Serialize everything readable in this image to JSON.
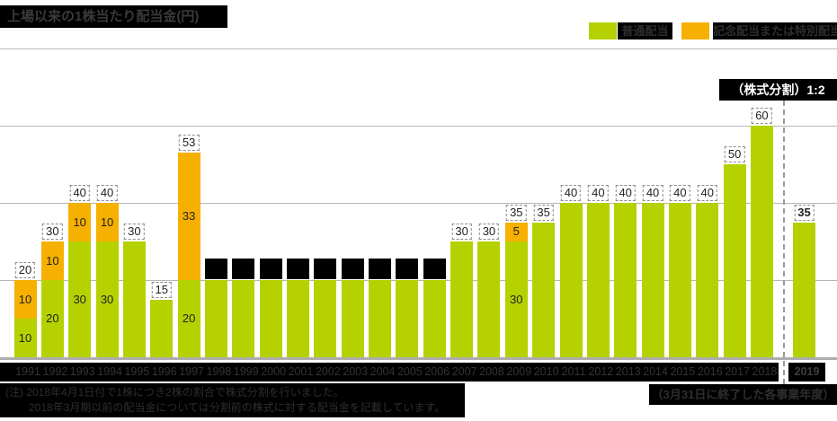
{
  "title": "上場以来の1株当たり配当金(円)",
  "colors": {
    "ordinary": "#b5d200",
    "special": "#f6b000",
    "grid": "#b7b7b7",
    "label_box_border": "#8c8c8c"
  },
  "legend": {
    "ordinary_label": "普通配当",
    "special_label": "記念配当または特別配当"
  },
  "split_annotation": "（株式分割）1:2",
  "axis_note": "（3月31日に終了した各事業年度）",
  "footnote": {
    "line1": "(注) 2018年4月1日付で1株につき2株の割合で株式分割を行いました。",
    "line2": "2018年3月期以前の配当金については分割前の株式に対する配当金を記載しています。"
  },
  "chart_data": {
    "type": "bar",
    "stacked": true,
    "title": "上場以来の1株当たり配当金(円)",
    "ylim": [
      0,
      80
    ],
    "gridline_values": [
      20,
      40,
      60,
      80
    ],
    "legend_position": "top-right",
    "categories": [
      "1991",
      "1992",
      "1993",
      "1994",
      "1995",
      "1996",
      "1997",
      "1998",
      "1999",
      "2000",
      "2001",
      "2002",
      "2003",
      "2004",
      "2005",
      "2006",
      "2007",
      "2008",
      "2009",
      "2010",
      "2011",
      "2012",
      "2013",
      "2014",
      "2015",
      "2016",
      "2017",
      "2018",
      "2019"
    ],
    "series": [
      {
        "name": "普通配当",
        "values": [
          10,
          20,
          30,
          30,
          30,
          15,
          20,
          20,
          20,
          20,
          20,
          20,
          20,
          20,
          20,
          20,
          30,
          30,
          30,
          35,
          40,
          40,
          40,
          40,
          40,
          40,
          50,
          60,
          35
        ]
      },
      {
        "name": "記念配当または特別配当",
        "values": [
          10,
          10,
          10,
          10,
          0,
          0,
          33,
          0,
          0,
          0,
          0,
          0,
          0,
          0,
          0,
          0,
          0,
          0,
          5,
          0,
          0,
          0,
          0,
          0,
          0,
          0,
          0,
          0,
          0
        ]
      }
    ],
    "totals": [
      20,
      30,
      40,
      40,
      30,
      15,
      53,
      20,
      20,
      20,
      20,
      20,
      20,
      20,
      20,
      20,
      30,
      30,
      35,
      35,
      40,
      40,
      40,
      40,
      40,
      40,
      50,
      60,
      35
    ],
    "bars": [
      {
        "year": "1991",
        "ordinary": 10,
        "special": 10,
        "total": 20,
        "total_label": "20",
        "ordinary_label": "10",
        "special_label": "10"
      },
      {
        "year": "1992",
        "ordinary": 20,
        "special": 10,
        "total": 30,
        "total_label": "30",
        "ordinary_label": "20",
        "special_label": "10"
      },
      {
        "year": "1993",
        "ordinary": 30,
        "special": 10,
        "total": 40,
        "total_label": "40",
        "ordinary_label": "30",
        "special_label": "10"
      },
      {
        "year": "1994",
        "ordinary": 30,
        "special": 10,
        "total": 40,
        "total_label": "40",
        "ordinary_label": "30",
        "special_label": "10"
      },
      {
        "year": "1995",
        "ordinary": 30,
        "special": 0,
        "total": 30,
        "total_label": "30"
      },
      {
        "year": "1996",
        "ordinary": 15,
        "special": 0,
        "total": 15,
        "total_label": "15"
      },
      {
        "year": "1997",
        "ordinary": 20,
        "special": 33,
        "total": 53,
        "total_label": "53",
        "ordinary_label": "20",
        "special_label": "33"
      },
      {
        "year": "1998",
        "ordinary": 20,
        "special": 0,
        "total": 20,
        "redacted_label": true
      },
      {
        "year": "1999",
        "ordinary": 20,
        "special": 0,
        "total": 20,
        "redacted_label": true
      },
      {
        "year": "2000",
        "ordinary": 20,
        "special": 0,
        "total": 20,
        "redacted_label": true
      },
      {
        "year": "2001",
        "ordinary": 20,
        "special": 0,
        "total": 20,
        "redacted_label": true
      },
      {
        "year": "2002",
        "ordinary": 20,
        "special": 0,
        "total": 20,
        "redacted_label": true
      },
      {
        "year": "2003",
        "ordinary": 20,
        "special": 0,
        "total": 20,
        "redacted_label": true
      },
      {
        "year": "2004",
        "ordinary": 20,
        "special": 0,
        "total": 20,
        "redacted_label": true
      },
      {
        "year": "2005",
        "ordinary": 20,
        "special": 0,
        "total": 20,
        "redacted_label": true
      },
      {
        "year": "2006",
        "ordinary": 20,
        "special": 0,
        "total": 20,
        "redacted_label": true
      },
      {
        "year": "2007",
        "ordinary": 30,
        "special": 0,
        "total": 30,
        "total_label": "30"
      },
      {
        "year": "2008",
        "ordinary": 30,
        "special": 0,
        "total": 30,
        "total_label": "30"
      },
      {
        "year": "2009",
        "ordinary": 30,
        "special": 5,
        "total": 35,
        "total_label": "35",
        "ordinary_label": "30",
        "special_label": "5"
      },
      {
        "year": "2010",
        "ordinary": 35,
        "special": 0,
        "total": 35,
        "total_label": "35"
      },
      {
        "year": "2011",
        "ordinary": 40,
        "special": 0,
        "total": 40,
        "total_label": "40"
      },
      {
        "year": "2012",
        "ordinary": 40,
        "special": 0,
        "total": 40,
        "total_label": "40"
      },
      {
        "year": "2013",
        "ordinary": 40,
        "special": 0,
        "total": 40,
        "total_label": "40"
      },
      {
        "year": "2014",
        "ordinary": 40,
        "special": 0,
        "total": 40,
        "total_label": "40"
      },
      {
        "year": "2015",
        "ordinary": 40,
        "special": 0,
        "total": 40,
        "total_label": "40"
      },
      {
        "year": "2016",
        "ordinary": 40,
        "special": 0,
        "total": 40,
        "total_label": "40"
      },
      {
        "year": "2017",
        "ordinary": 50,
        "special": 0,
        "total": 50,
        "total_label": "50"
      },
      {
        "year": "2018",
        "ordinary": 60,
        "special": 0,
        "total": 60,
        "total_label": "60"
      },
      {
        "year": "2019",
        "ordinary": 35,
        "special": 0,
        "total": 35,
        "total_label": "35",
        "bold": true
      }
    ]
  }
}
